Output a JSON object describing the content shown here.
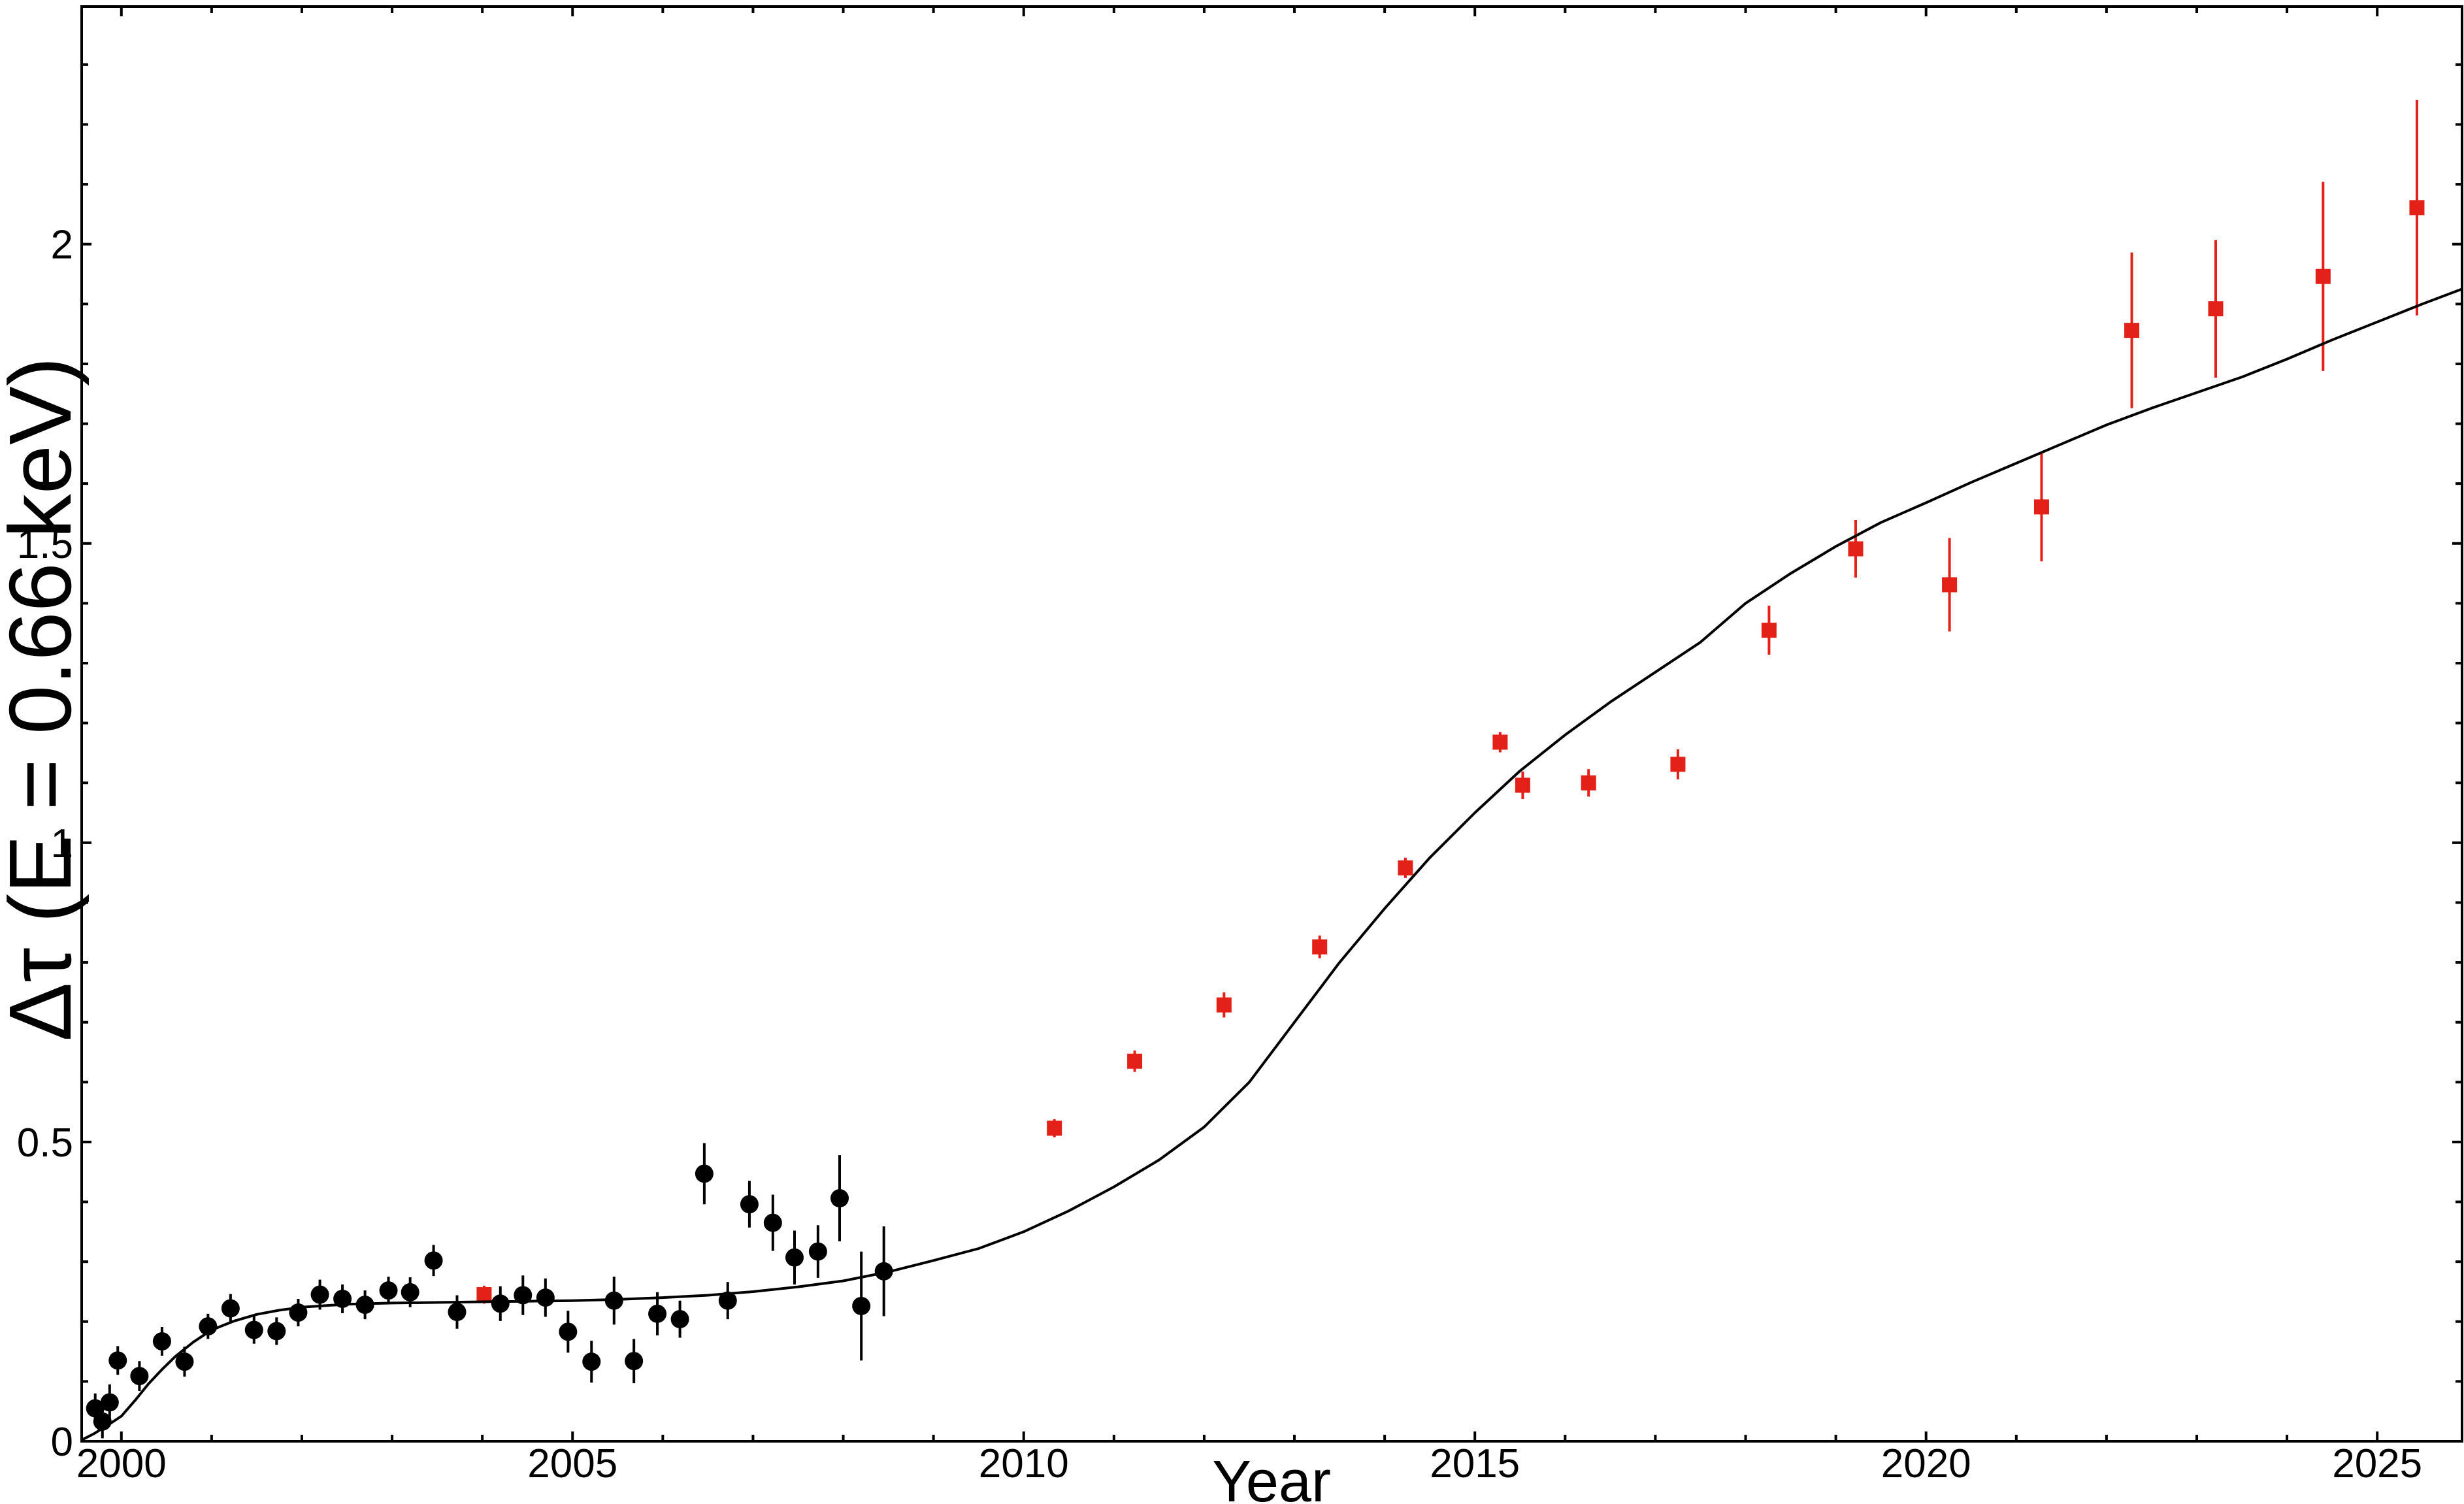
{
  "figure": {
    "background": "#ffffff",
    "frame_color": "#000000",
    "accent_red": "#e32119"
  },
  "chart_data": {
    "type": "scatter",
    "title": "",
    "xlabel": "Year",
    "ylabel": "Δτ (E = 0.66 keV)",
    "xlim": [
      1999.56,
      2025.94
    ],
    "ylim": [
      0,
      2.397
    ],
    "grid": false,
    "legend": "none",
    "x_major_ticks": [
      2000,
      2005,
      2010,
      2015,
      2020,
      2025
    ],
    "x_major_tick_labels": [
      "2000",
      "2005",
      "2010",
      "2015",
      "2020",
      "2025"
    ],
    "x_minor_tick_step": 1,
    "x_minor_tick_range": [
      2000,
      2025
    ],
    "y_major_ticks": [
      0,
      0.5,
      1,
      1.5,
      2
    ],
    "y_major_tick_labels": [
      "0",
      "0.5",
      "1",
      "1.5",
      "2"
    ],
    "y_minor_tick_step": 0.1,
    "y_minor_tick_range": [
      0.1,
      2.3
    ],
    "series": [
      {
        "name": "black-circle-data",
        "marker": "circle",
        "color": "#000000",
        "points_format": [
          "year",
          "delta_tau",
          "error"
        ],
        "points": [
          [
            1999.71,
            0.055,
            0.025
          ],
          [
            1999.79,
            0.033,
            0.028
          ],
          [
            1999.87,
            0.065,
            0.03
          ],
          [
            1999.96,
            0.135,
            0.024
          ],
          [
            2000.2,
            0.109,
            0.025
          ],
          [
            2000.45,
            0.167,
            0.024
          ],
          [
            2000.7,
            0.133,
            0.025
          ],
          [
            2000.96,
            0.192,
            0.021
          ],
          [
            2001.21,
            0.222,
            0.024
          ],
          [
            2001.47,
            0.186,
            0.023
          ],
          [
            2001.72,
            0.184,
            0.023
          ],
          [
            2001.96,
            0.215,
            0.023
          ],
          [
            2002.2,
            0.245,
            0.025
          ],
          [
            2002.45,
            0.238,
            0.024
          ],
          [
            2002.7,
            0.228,
            0.024
          ],
          [
            2002.96,
            0.252,
            0.023
          ],
          [
            2003.2,
            0.249,
            0.025
          ],
          [
            2003.46,
            0.302,
            0.026
          ],
          [
            2003.72,
            0.216,
            0.028
          ],
          [
            2004.2,
            0.23,
            0.029
          ],
          [
            2004.45,
            0.244,
            0.033
          ],
          [
            2004.7,
            0.24,
            0.032
          ],
          [
            2004.95,
            0.183,
            0.035
          ],
          [
            2005.21,
            0.133,
            0.035
          ],
          [
            2005.46,
            0.235,
            0.04
          ],
          [
            2005.68,
            0.134,
            0.037
          ],
          [
            2005.94,
            0.213,
            0.036
          ],
          [
            2006.19,
            0.204,
            0.031
          ],
          [
            2006.46,
            0.447,
            0.051
          ],
          [
            2006.72,
            0.235,
            0.031
          ],
          [
            2006.96,
            0.396,
            0.039
          ],
          [
            2007.22,
            0.365,
            0.047
          ],
          [
            2007.46,
            0.307,
            0.045
          ],
          [
            2007.72,
            0.317,
            0.044
          ],
          [
            2007.96,
            0.406,
            0.072
          ],
          [
            2008.2,
            0.226,
            0.091
          ],
          [
            2008.45,
            0.284,
            0.075
          ]
        ]
      },
      {
        "name": "red-square-data",
        "marker": "square",
        "color": "#e32119",
        "points_format": [
          "year",
          "delta_tau",
          "error"
        ],
        "points": [
          [
            2004.02,
            0.245,
            0.015
          ],
          [
            2010.34,
            0.523,
            0.015
          ],
          [
            2011.23,
            0.635,
            0.018
          ],
          [
            2012.22,
            0.729,
            0.021
          ],
          [
            2013.28,
            0.826,
            0.019
          ],
          [
            2014.23,
            0.958,
            0.017
          ],
          [
            2015.28,
            1.168,
            0.017
          ],
          [
            2015.53,
            1.096,
            0.023
          ],
          [
            2016.26,
            1.1,
            0.023
          ],
          [
            2017.25,
            1.131,
            0.025
          ],
          [
            2018.26,
            1.355,
            0.041
          ],
          [
            2019.22,
            1.491,
            0.048
          ],
          [
            2020.26,
            1.431,
            0.078
          ],
          [
            2021.28,
            1.561,
            0.091
          ],
          [
            2022.28,
            1.856,
            0.13
          ],
          [
            2023.21,
            1.892,
            0.115
          ],
          [
            2024.4,
            1.946,
            0.158
          ],
          [
            2025.44,
            2.061,
            0.18
          ]
        ]
      },
      {
        "name": "model-curve",
        "marker": "none",
        "line": true,
        "color": "#000000",
        "points_format": [
          "year",
          "delta_tau"
        ],
        "points": [
          [
            1999.57,
            0.003
          ],
          [
            1999.7,
            0.013
          ],
          [
            1999.85,
            0.027
          ],
          [
            2000.0,
            0.042
          ],
          [
            2000.15,
            0.068
          ],
          [
            2000.3,
            0.096
          ],
          [
            2000.45,
            0.12
          ],
          [
            2000.6,
            0.142
          ],
          [
            2000.8,
            0.166
          ],
          [
            2001.0,
            0.186
          ],
          [
            2001.25,
            0.201
          ],
          [
            2001.5,
            0.212
          ],
          [
            2001.75,
            0.219
          ],
          [
            2002.0,
            0.224
          ],
          [
            2002.5,
            0.229
          ],
          [
            2003.0,
            0.231
          ],
          [
            2003.5,
            0.232
          ],
          [
            2004.0,
            0.233
          ],
          [
            2004.5,
            0.234
          ],
          [
            2005.0,
            0.235
          ],
          [
            2005.5,
            0.237
          ],
          [
            2006.0,
            0.24
          ],
          [
            2006.5,
            0.244
          ],
          [
            2007.0,
            0.25
          ],
          [
            2007.5,
            0.258
          ],
          [
            2008.0,
            0.268
          ],
          [
            2008.5,
            0.283
          ],
          [
            2009.0,
            0.302
          ],
          [
            2009.5,
            0.322
          ],
          [
            2010.0,
            0.35
          ],
          [
            2010.5,
            0.385
          ],
          [
            2011.0,
            0.425
          ],
          [
            2011.5,
            0.47
          ],
          [
            2012.0,
            0.525
          ],
          [
            2012.5,
            0.6
          ],
          [
            2013.0,
            0.7
          ],
          [
            2013.5,
            0.8
          ],
          [
            2014.0,
            0.89
          ],
          [
            2014.5,
            0.975
          ],
          [
            2015.0,
            1.05
          ],
          [
            2015.5,
            1.12
          ],
          [
            2016.0,
            1.18
          ],
          [
            2016.5,
            1.235
          ],
          [
            2017.0,
            1.285
          ],
          [
            2017.5,
            1.335
          ],
          [
            2018.0,
            1.4
          ],
          [
            2018.5,
            1.45
          ],
          [
            2019.0,
            1.495
          ],
          [
            2019.5,
            1.535
          ],
          [
            2020.0,
            1.568
          ],
          [
            2020.5,
            1.602
          ],
          [
            2021.0,
            1.634
          ],
          [
            2021.5,
            1.666
          ],
          [
            2022.0,
            1.698
          ],
          [
            2022.5,
            1.726
          ],
          [
            2023.0,
            1.752
          ],
          [
            2023.5,
            1.778
          ],
          [
            2024.0,
            1.808
          ],
          [
            2024.5,
            1.84
          ],
          [
            2025.0,
            1.87
          ],
          [
            2025.5,
            1.9
          ],
          [
            2025.94,
            1.925
          ]
        ]
      }
    ]
  }
}
